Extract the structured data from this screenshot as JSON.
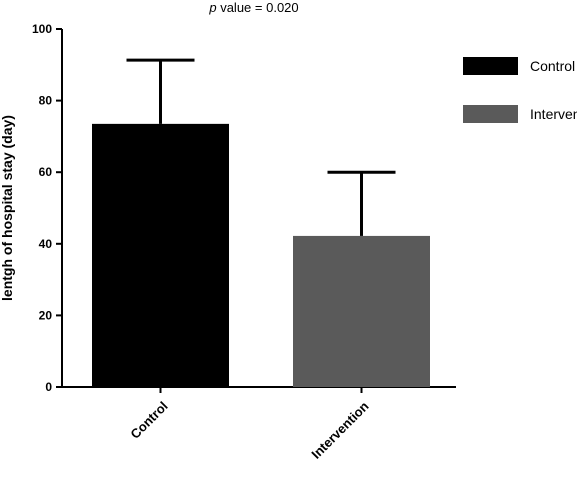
{
  "chart_data": {
    "type": "bar",
    "annotation": {
      "p_symbol": "p",
      "p_text": " value = 0.020"
    },
    "ylabel": "lentgh of hospital stay (day)",
    "xlabel": "",
    "ylim": [
      0,
      100
    ],
    "yticks": [
      0,
      20,
      40,
      60,
      80,
      100
    ],
    "categories": [
      "Control",
      "Intervention"
    ],
    "values": [
      73.5,
      42.2
    ],
    "errors": [
      17.8,
      17.8
    ],
    "colors": [
      "#000000",
      "#5a5a5a"
    ],
    "legend": {
      "position": "right",
      "entries": [
        {
          "label": "Control",
          "color": "#000000"
        },
        {
          "label": "Intervention",
          "color": "#5a5a5a"
        }
      ]
    },
    "grid": false
  }
}
